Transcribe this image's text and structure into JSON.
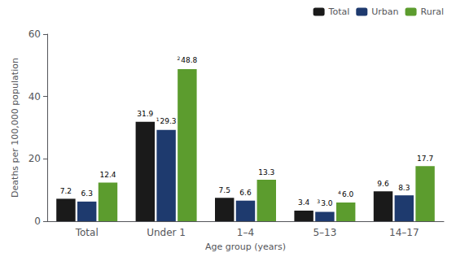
{
  "chart_data": {
    "type": "bar",
    "categories": [
      "Total",
      "Under 1",
      "1–4",
      "5–13",
      "14–17"
    ],
    "series": [
      {
        "name": "Total",
        "color": "#1a1a1a",
        "values": [
          7.2,
          31.9,
          7.5,
          3.4,
          9.6
        ],
        "value_labels": [
          "7.2",
          "31.9",
          "7.5",
          "3.4",
          "9.6"
        ]
      },
      {
        "name": "Urban",
        "color": "#1e3a6e",
        "values": [
          6.3,
          29.3,
          6.6,
          3.0,
          8.3
        ],
        "value_labels": [
          "6.3",
          "29.3",
          "6.6",
          "3.0",
          "8.3"
        ],
        "footnotes": [
          null,
          "1",
          null,
          "3",
          null
        ]
      },
      {
        "name": "Rural",
        "color": "#5c9c2e",
        "values": [
          12.4,
          48.8,
          13.3,
          6.0,
          17.7
        ],
        "value_labels": [
          "12.4",
          "48.8",
          "13.3",
          "6.0",
          "17.7"
        ],
        "footnotes": [
          null,
          "2",
          null,
          "4",
          null
        ]
      }
    ],
    "xlabel": "Age group (years)",
    "ylabel": "Deaths per 100,000 population",
    "ylim": [
      0,
      60
    ],
    "yticks": [
      0,
      20,
      40,
      60
    ],
    "grid": false,
    "legend": "upper right",
    "data_labels": true
  }
}
